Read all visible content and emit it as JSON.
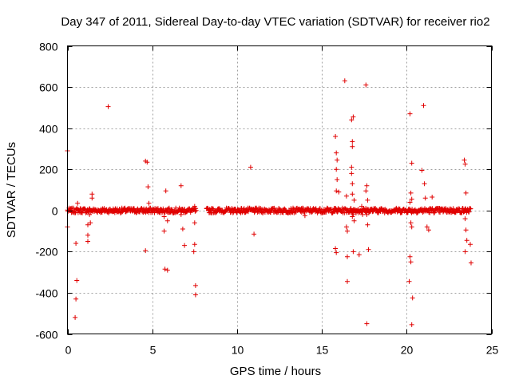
{
  "chart_data": {
    "type": "scatter",
    "title": "Day 347 of 2011, Sidereal Day-to-day VTEC variation (SDTVAR) for receiver rio2",
    "xlabel": "GPS time / hours",
    "ylabel": "SDTVAR / TECUs",
    "xlim": [
      0,
      25
    ],
    "ylim": [
      -600,
      800
    ],
    "xticks": [
      0,
      5,
      10,
      15,
      20,
      25
    ],
    "yticks": [
      -600,
      -400,
      -200,
      0,
      200,
      400,
      600,
      800
    ],
    "xtick_labels": [
      "0",
      "5",
      "10",
      "15",
      "20",
      "25"
    ],
    "ytick_labels": [
      "-600",
      "-400",
      "-200",
      "0",
      "200",
      "400",
      "600",
      "800"
    ],
    "grid": true,
    "marker": "+",
    "color": "#e00000",
    "dense_band": {
      "description": "near-continuous band of points at ~0 TECU",
      "segments": [
        [
          0,
          7.6
        ],
        [
          8.2,
          23.8
        ]
      ],
      "amplitude": 12
    },
    "series": [
      {
        "name": "SDTVAR",
        "points": [
          [
            0.0,
            290
          ],
          [
            0.0,
            -80
          ],
          [
            0.5,
            -160
          ],
          [
            0.55,
            -340
          ],
          [
            0.5,
            -430
          ],
          [
            0.45,
            -520
          ],
          [
            0.6,
            35
          ],
          [
            1.2,
            -70
          ],
          [
            1.2,
            -120
          ],
          [
            1.2,
            -150
          ],
          [
            1.35,
            -60
          ],
          [
            1.3,
            -20
          ],
          [
            1.45,
            80
          ],
          [
            1.45,
            60
          ],
          [
            2.4,
            505
          ],
          [
            4.6,
            240
          ],
          [
            4.7,
            235
          ],
          [
            4.75,
            115
          ],
          [
            4.8,
            35
          ],
          [
            4.8,
            -10
          ],
          [
            4.6,
            -195
          ],
          [
            5.7,
            -100
          ],
          [
            5.75,
            -285
          ],
          [
            5.9,
            -290
          ],
          [
            5.8,
            95
          ],
          [
            5.9,
            -50
          ],
          [
            5.7,
            -30
          ],
          [
            6.7,
            120
          ],
          [
            6.7,
            -20
          ],
          [
            6.8,
            -90
          ],
          [
            6.9,
            -170
          ],
          [
            7.45,
            -200
          ],
          [
            7.5,
            -165
          ],
          [
            7.55,
            -365
          ],
          [
            7.55,
            -410
          ],
          [
            7.5,
            -60
          ],
          [
            7.5,
            20
          ],
          [
            10.8,
            210
          ],
          [
            11.0,
            -115
          ],
          [
            13.8,
            10
          ],
          [
            14.0,
            -25
          ],
          [
            15.8,
            360
          ],
          [
            15.85,
            280
          ],
          [
            15.9,
            245
          ],
          [
            15.85,
            200
          ],
          [
            15.9,
            150
          ],
          [
            15.85,
            95
          ],
          [
            16.0,
            90
          ],
          [
            15.8,
            -185
          ],
          [
            15.85,
            -205
          ],
          [
            16.35,
            630
          ],
          [
            16.45,
            70
          ],
          [
            16.45,
            -80
          ],
          [
            16.5,
            -100
          ],
          [
            16.5,
            -225
          ],
          [
            16.5,
            -345
          ],
          [
            16.75,
            440
          ],
          [
            16.85,
            455
          ],
          [
            16.8,
            335
          ],
          [
            16.8,
            310
          ],
          [
            16.75,
            210
          ],
          [
            16.75,
            180
          ],
          [
            16.8,
            130
          ],
          [
            16.8,
            80
          ],
          [
            16.9,
            50
          ],
          [
            16.85,
            -20
          ],
          [
            16.8,
            -30
          ],
          [
            16.9,
            -50
          ],
          [
            16.85,
            -200
          ],
          [
            17.2,
            -215
          ],
          [
            17.35,
            20
          ],
          [
            17.4,
            -20
          ],
          [
            17.6,
            610
          ],
          [
            17.65,
            120
          ],
          [
            17.6,
            95
          ],
          [
            17.7,
            50
          ],
          [
            17.65,
            -20
          ],
          [
            17.7,
            -70
          ],
          [
            17.75,
            -190
          ],
          [
            17.65,
            -550
          ],
          [
            20.2,
            470
          ],
          [
            20.3,
            230
          ],
          [
            20.25,
            85
          ],
          [
            20.2,
            40
          ],
          [
            20.3,
            55
          ],
          [
            20.25,
            -60
          ],
          [
            20.3,
            -80
          ],
          [
            20.2,
            -225
          ],
          [
            20.25,
            -250
          ],
          [
            20.15,
            -345
          ],
          [
            20.35,
            -425
          ],
          [
            20.3,
            -555
          ],
          [
            20.9,
            195
          ],
          [
            21.0,
            510
          ],
          [
            21.05,
            130
          ],
          [
            21.1,
            60
          ],
          [
            21.2,
            -80
          ],
          [
            21.3,
            -95
          ],
          [
            21.5,
            65
          ],
          [
            23.4,
            245
          ],
          [
            23.45,
            225
          ],
          [
            23.5,
            85
          ],
          [
            23.45,
            -40
          ],
          [
            23.5,
            -95
          ],
          [
            23.55,
            -145
          ],
          [
            23.45,
            -200
          ],
          [
            23.75,
            -165
          ],
          [
            23.8,
            -255
          ]
        ]
      }
    ]
  }
}
